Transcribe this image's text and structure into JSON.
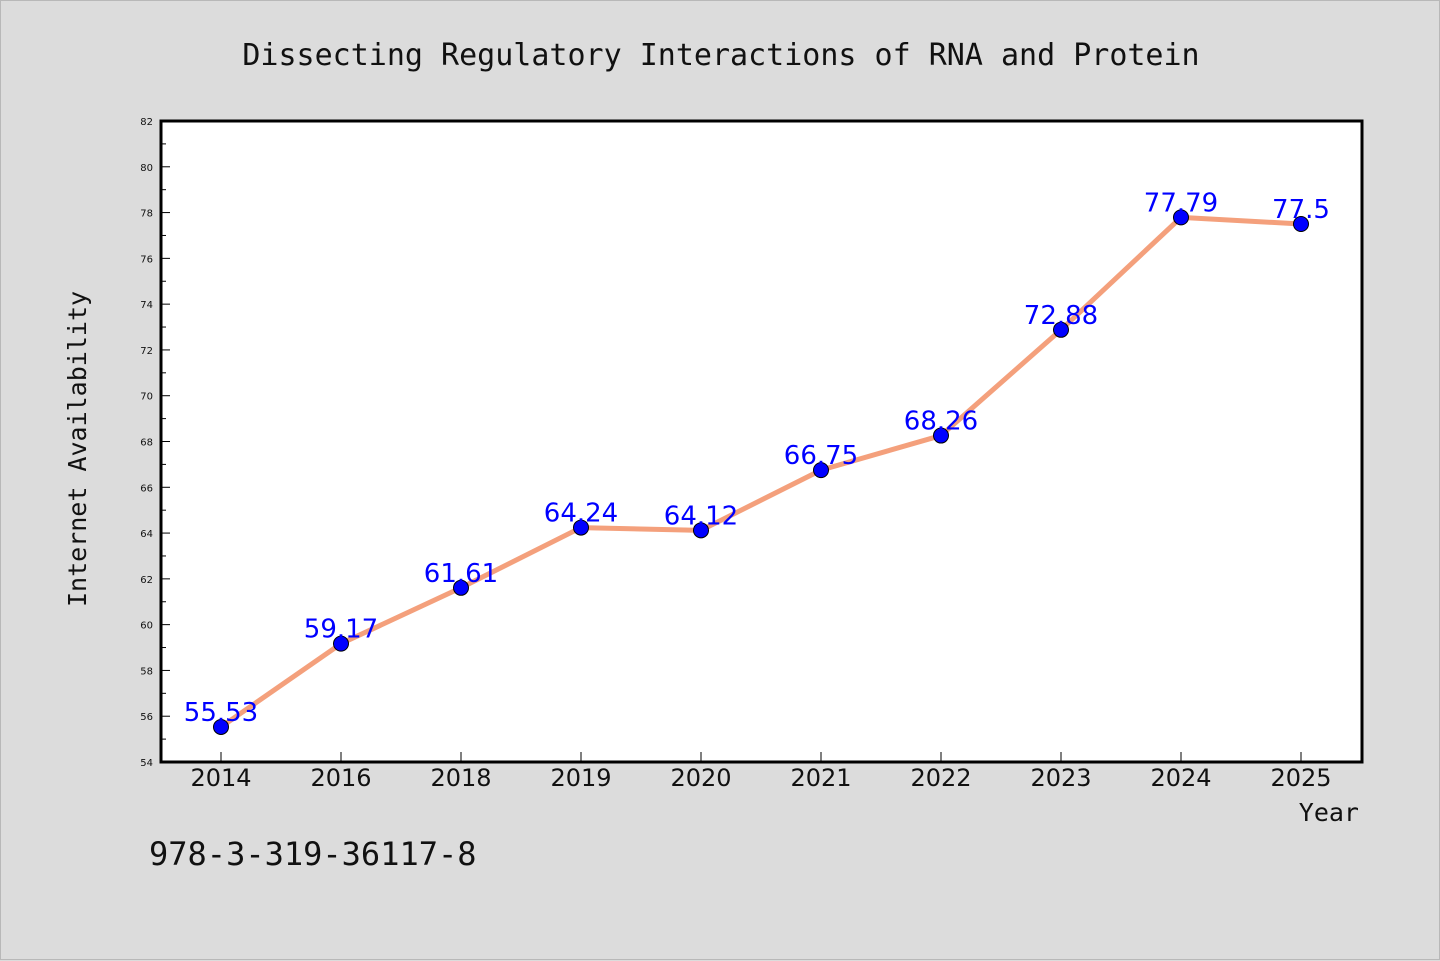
{
  "chart_data": {
    "type": "line",
    "title": "Dissecting Regulatory Interactions of RNA and Protein",
    "xlabel": "Year",
    "ylabel": "Internet Availability",
    "categories": [
      "2014",
      "2016",
      "2018",
      "2019",
      "2020",
      "2021",
      "2022",
      "2023",
      "2024",
      "2025"
    ],
    "series": [
      {
        "values": [
          55.53,
          59.17,
          61.61,
          64.24,
          64.12,
          66.75,
          68.26,
          72.88,
          77.79,
          77.5
        ],
        "data_labels": [
          "55.53",
          "59.17",
          "61.61",
          "64.24",
          "64.12",
          "66.75",
          "68.26",
          "72.88",
          "77.79",
          "77.5"
        ],
        "line_color": "#f4a07c",
        "marker_color": "#0000ff"
      }
    ],
    "ylim": [
      54,
      82
    ],
    "yticks": [
      "54",
      "56",
      "58",
      "60",
      "62",
      "64",
      "66",
      "68",
      "70",
      "72",
      "74",
      "76",
      "78",
      "80",
      "82"
    ],
    "grid": false,
    "legend": "none"
  },
  "footer": {
    "isbn": "978-3-319-36117-8"
  },
  "colors": {
    "background": "#dcdcdc",
    "plot_background": "#ffffff",
    "line": "#f4a07c",
    "marker": "#0000ff",
    "label": "#0000ff"
  }
}
